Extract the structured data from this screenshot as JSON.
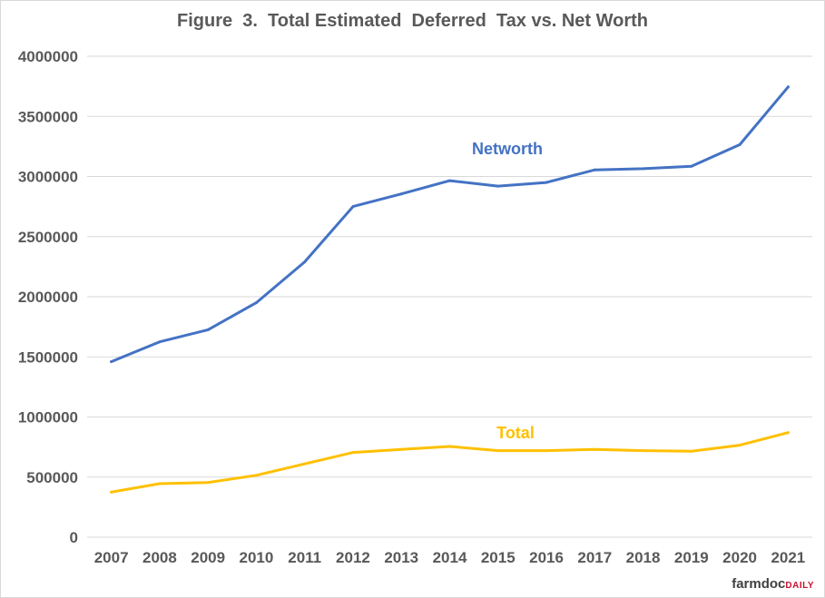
{
  "chart_data": {
    "type": "line",
    "title": "Figure  3.  Total Estimated  Deferred  Tax vs. Net Worth",
    "categories": [
      "2007",
      "2008",
      "2009",
      "2010",
      "2011",
      "2012",
      "2013",
      "2014",
      "2015",
      "2016",
      "2017",
      "2018",
      "2019",
      "2020",
      "2021"
    ],
    "y_ticks": [
      "0",
      "500000",
      "1000000",
      "1500000",
      "2000000",
      "2500000",
      "3000000",
      "3500000",
      "4000000"
    ],
    "ylim": [
      0,
      4000000
    ],
    "grid": true,
    "series": [
      {
        "name": "Networth",
        "color": "#4472c4",
        "values": [
          1460000,
          1625000,
          1725000,
          1950000,
          2290000,
          2750000,
          2855000,
          2965000,
          2920000,
          2950000,
          3055000,
          3065000,
          3085000,
          3265000,
          3745000
        ]
      },
      {
        "name": "Total",
        "color": "#ffc000",
        "values": [
          375000,
          445000,
          455000,
          515000,
          610000,
          705000,
          730000,
          755000,
          720000,
          720000,
          730000,
          720000,
          715000,
          765000,
          870000
        ]
      }
    ]
  },
  "brand": {
    "part1": "farmdoc",
    "part2": "DAILY"
  }
}
